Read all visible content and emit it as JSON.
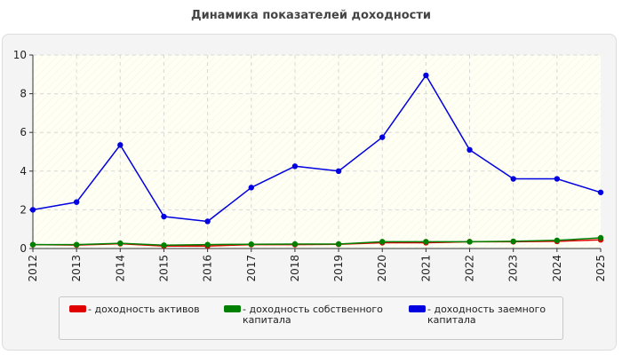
{
  "title": "Динамика показателей доходности",
  "colors": {
    "panel_bg": "#f4f4f4",
    "plot_bg": "#fffff4",
    "grid": "#d8d8d8",
    "axis": "#333333"
  },
  "chart_data": {
    "type": "line",
    "title": "Динамика показателей доходности",
    "x": [
      "2012",
      "2013",
      "2014",
      "2015",
      "2016",
      "2017",
      "2018",
      "2019",
      "2020",
      "2021",
      "2022",
      "2023",
      "2024",
      "2025"
    ],
    "ylim": [
      0,
      10
    ],
    "yticks": [
      "0",
      "2",
      "4",
      "6",
      "8",
      "10"
    ],
    "grid": true,
    "legend_position": "bottom",
    "series": [
      {
        "name": "- доходность активов",
        "color": "#e00000",
        "values": [
          0.2,
          0.18,
          0.25,
          0.13,
          0.13,
          0.2,
          0.2,
          0.22,
          0.3,
          0.3,
          0.35,
          0.35,
          0.37,
          0.45
        ]
      },
      {
        "name": "- доходность собственного капитала",
        "color": "#008000",
        "values": [
          0.2,
          0.2,
          0.27,
          0.17,
          0.2,
          0.22,
          0.23,
          0.23,
          0.35,
          0.35,
          0.35,
          0.37,
          0.42,
          0.55
        ]
      },
      {
        "name": "- доходность заемного капитала",
        "color": "#0000e0",
        "values": [
          2.0,
          2.4,
          5.35,
          1.65,
          1.4,
          3.15,
          4.25,
          4.0,
          5.75,
          8.95,
          5.1,
          3.6,
          3.6,
          2.9
        ]
      }
    ]
  },
  "legend": {
    "items": [
      {
        "label": "- доходность активов",
        "color": "#e00000"
      },
      {
        "label": "- доходность собственного капитала",
        "color": "#008000"
      },
      {
        "label": "- доходность заемного капитала",
        "color": "#0000e0"
      }
    ]
  }
}
